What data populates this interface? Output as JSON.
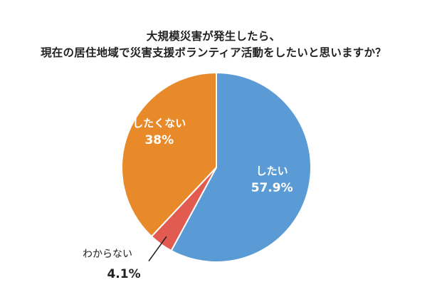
{
  "chart_data": {
    "type": "pie",
    "title": [
      "大規模災害が発生したら、",
      "現在の居住地域で災害支援ボランティア活動をしたいと思いますか？"
    ],
    "slices": [
      {
        "label": "したい",
        "value": 57.9,
        "display": "57.9%",
        "color": "#5b9bd5"
      },
      {
        "label": "わからない",
        "value": 4.1,
        "display": "4.1%",
        "color": "#e15b51"
      },
      {
        "label": "したくない",
        "value": 38,
        "display": "38%",
        "color": "#e8892a"
      }
    ],
    "start": "12 o'clock",
    "direction": "clockwise",
    "legend": "none"
  }
}
